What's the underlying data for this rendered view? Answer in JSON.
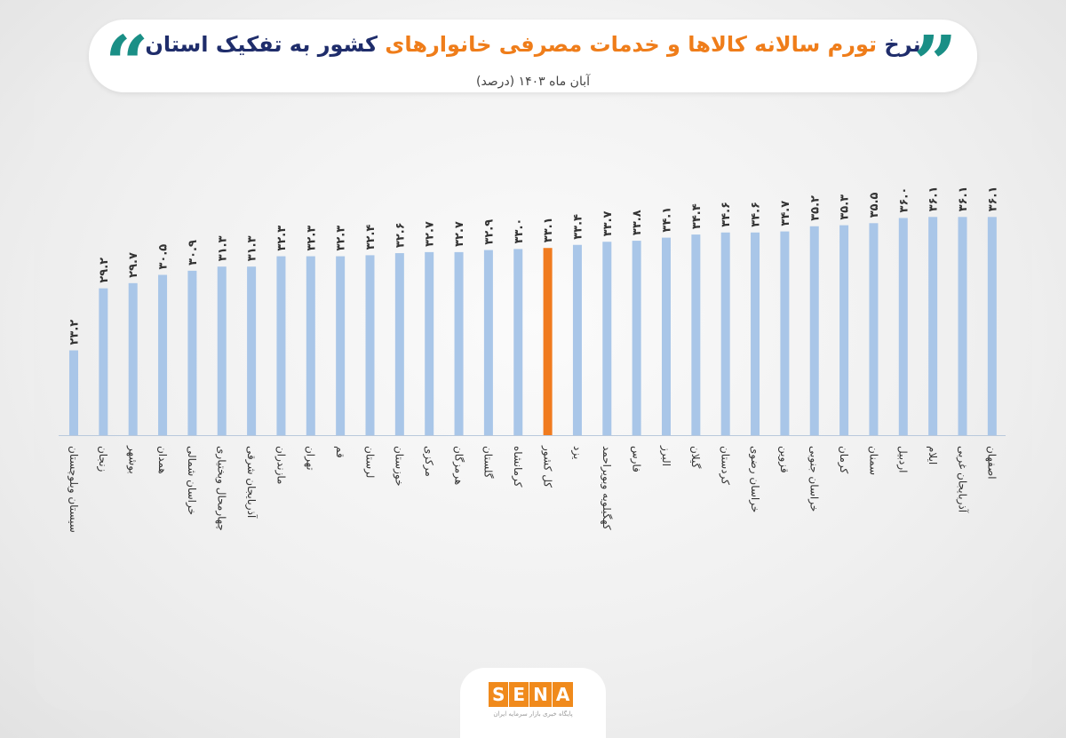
{
  "header": {
    "title_part1": "نرخ",
    "title_part2": "تورم سالانه کالاها و خدمات مصرفی خانوارهای",
    "title_part3": "کشور به تفکیک استان",
    "subtitle": "آبان ماه ۱۴۰۳ (درصد)",
    "quote_open": "“",
    "quote_close": "”"
  },
  "branding": {
    "logo_letters": [
      "S",
      "E",
      "N",
      "A"
    ],
    "tagline": "پایگاه خبری بازار سرمایه ایران"
  },
  "colors": {
    "bar": "#a9c6e8",
    "highlight_bar": "#f07b1f",
    "title_dark": "#1f2d6b",
    "title_orange": "#ef7d1a",
    "title_teal": "#1a8f86"
  },
  "chart_data": {
    "type": "bar",
    "orientation": "vertical",
    "grid": false,
    "ylim": [
      0,
      40
    ],
    "categories": [
      "سیستان وبلوچستان",
      "زنجان",
      "بوشهر",
      "همدان",
      "خراسان شمالی",
      "چهارمحال وبختیاری",
      "آذربایجان شرقی",
      "مازندران",
      "تهران",
      "قم",
      "لرستان",
      "خوزستان",
      "مرکزی",
      "هرمزگان",
      "گلستان",
      "کرمانشاه",
      "کل کشور",
      "یزد",
      "کهگیلویه وبویراحمد",
      "فارس",
      "البرز",
      "گیلان",
      "کردستان",
      "خراسان رضوی",
      "قزوین",
      "خراسان جنوبی",
      "کرمان",
      "سمنان",
      "اردبیل",
      "ایلام",
      "آذربایجان غربی",
      "اصفهان"
    ],
    "values": [
      23.2,
      29.2,
      29.7,
      30.5,
      30.9,
      31.3,
      31.3,
      32.3,
      32.3,
      32.3,
      32.4,
      32.6,
      32.7,
      32.7,
      32.9,
      33.0,
      33.1,
      33.4,
      33.7,
      33.8,
      34.1,
      34.4,
      34.6,
      34.6,
      34.7,
      35.2,
      35.3,
      35.5,
      36.0,
      36.1,
      36.1,
      36.1
    ],
    "value_labels": [
      "۲۳.۲",
      "۲۹.۲",
      "۲۹.۷",
      "۳۰.۵",
      "۳۰.۹",
      "۳۱.۳",
      "۳۱.۳",
      "۳۲.۳",
      "۳۲.۳",
      "۳۲.۳",
      "۳۲.۴",
      "۳۲.۶",
      "۳۲.۷",
      "۳۲.۷",
      "۳۲.۹",
      "۳۳.۰",
      "۳۳.۱",
      "۳۳.۴",
      "۳۳.۷",
      "۳۳.۸",
      "۳۴.۱",
      "۳۴.۴",
      "۳۴.۶",
      "۳۴.۶",
      "۳۴.۷",
      "۳۵.۲",
      "۳۵.۳",
      "۳۵.۵",
      "۳۶.۰",
      "۳۶.۱",
      "۳۶.۱",
      "۳۶.۱"
    ],
    "highlight_category": "کل کشور"
  }
}
